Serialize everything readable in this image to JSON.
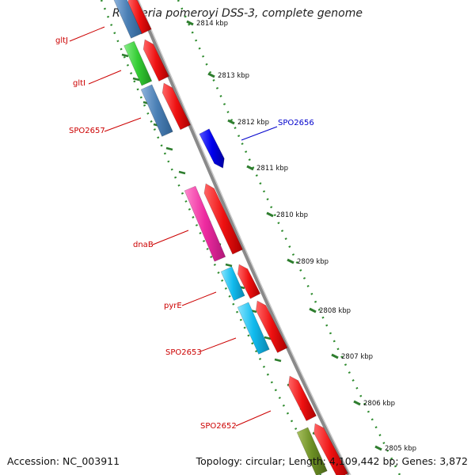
{
  "title": "Ruegeria pomeroyi DSS-3, complete genome",
  "footer": {
    "accession": "Accession: NC_003911",
    "summary": "Topology: circular; Length: 4,109,442 bp; Genes: 3,872"
  },
  "colors": {
    "backbone": "#8a8a8a",
    "dots": "#2e8b2e",
    "tick": "#2e7d2e",
    "gene_label_red": "#cc0000",
    "gene_label_blue": "#0000cc",
    "blue_gene": "#0000ee",
    "red_gene": "#ee1111",
    "steel": "#4a7fb5",
    "green": "#33cc33",
    "magenta": "#ee2aa0",
    "cyan": "#11bbee",
    "olive": "#6b8e23"
  },
  "ruler": [
    {
      "label": "2814 kbp"
    },
    {
      "label": "2813 kbp"
    },
    {
      "label": "2812 kbp"
    },
    {
      "label": "2811 kbp"
    },
    {
      "label": "2810 kbp"
    },
    {
      "label": "2809 kbp"
    },
    {
      "label": "2808 kbp"
    },
    {
      "label": "2807 kbp"
    },
    {
      "label": "2806 kbp"
    },
    {
      "label": "2805 kbp"
    }
  ],
  "genes": [
    {
      "name": "gltJ",
      "color": "steel",
      "strand": "outer-left"
    },
    {
      "name": "gltI",
      "color": "green",
      "strand": "outer-left"
    },
    {
      "name": "SPO2657",
      "color": "steel",
      "strand": "outer-left"
    },
    {
      "name": "SPO2656",
      "color": "blue_gene",
      "strand": "right"
    },
    {
      "name": "dnaB",
      "color": "magenta",
      "strand": "outer-left"
    },
    {
      "name": "pyrE",
      "color": "cyan",
      "strand": "outer-left"
    },
    {
      "name": "SPO2653",
      "color": "cyan",
      "strand": "outer-left"
    },
    {
      "name": "SPO2652",
      "color": "red_gene",
      "strand": "inner-left"
    }
  ]
}
